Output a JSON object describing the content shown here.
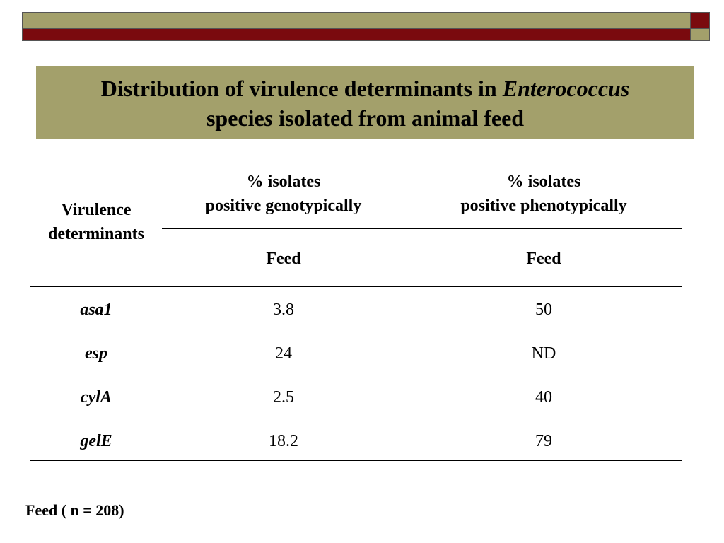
{
  "header_bars": {
    "olive": "#a3a06b",
    "maroon": "#7a0a0e"
  },
  "title": {
    "line1_prefix": "Distribution of virulence determinants in ",
    "line1_italic": "Enterococcus",
    "line2_prefix": "specie",
    "line2_italic": "s",
    "line2_suffix": " isolated from animal feed"
  },
  "table": {
    "row_header_line1": "Virulence",
    "row_header_line2": "determinants",
    "col1_header_line1": "% isolates",
    "col1_header_line2": "positive genotypically",
    "col2_header_line1": "% isolates",
    "col2_header_line2": "positive phenotypically",
    "col1_subheader": "Feed",
    "col2_subheader": "Feed",
    "rows": [
      {
        "gene": "asa1",
        "geno": "3.8",
        "pheno": "50"
      },
      {
        "gene": "esp",
        "geno": "24",
        "pheno": "ND"
      },
      {
        "gene": "cylA",
        "geno": "2.5",
        "pheno": "40"
      },
      {
        "gene": "gelE",
        "geno": "18.2",
        "pheno": "79"
      }
    ]
  },
  "footnote": "Feed ( n = 208)"
}
